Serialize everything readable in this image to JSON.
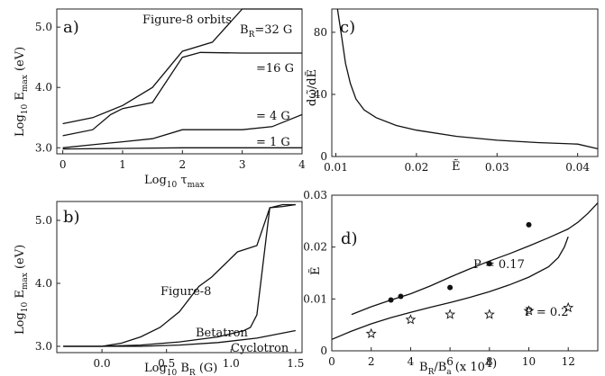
{
  "chart_data": [
    {
      "panel": "a)",
      "type": "line",
      "annotation": "Figure-8 orbits",
      "xlabel": "Log10 τmax",
      "ylabel": "Log10 Emax (eV)",
      "xlim": [
        -0.1,
        4.0
      ],
      "ylim": [
        2.9,
        5.3
      ],
      "xticks": [
        0,
        1,
        2,
        3,
        4
      ],
      "yticks": [
        3.0,
        4.0,
        5.0
      ],
      "series": [
        {
          "name": "BR=32 G",
          "label": "BR = 32 G",
          "x": [
            0,
            0.5,
            1.0,
            1.5,
            2.0,
            2.5,
            3.0,
            3.5,
            4.0
          ],
          "y": [
            3.4,
            3.5,
            3.7,
            4.0,
            4.6,
            4.75,
            5.3,
            5.3,
            5.3
          ]
        },
        {
          "name": "=16 G",
          "label": "= 16 G",
          "x": [
            0,
            0.5,
            0.8,
            1.0,
            1.5,
            2.0,
            2.3,
            3.0,
            3.5,
            4.0
          ],
          "y": [
            3.2,
            3.3,
            3.55,
            3.65,
            3.75,
            4.5,
            4.58,
            4.57,
            4.57,
            4.57
          ]
        },
        {
          "name": "=4 G",
          "label": "= 4 G",
          "x": [
            0,
            0.5,
            1.0,
            1.5,
            2.0,
            2.5,
            3.0,
            3.5,
            4.0
          ],
          "y": [
            3.0,
            3.05,
            3.1,
            3.15,
            3.3,
            3.3,
            3.3,
            3.35,
            3.55
          ]
        },
        {
          "name": "=1 G",
          "label": "= 1 G",
          "x": [
            0,
            1,
            2,
            3,
            4
          ],
          "y": [
            2.98,
            2.99,
            3.0,
            3.0,
            3.0
          ]
        }
      ]
    },
    {
      "panel": "b)",
      "type": "line",
      "xlabel": "Log10 BR (G)",
      "ylabel": "Log10 Emax (eV)",
      "xlim": [
        -0.35,
        1.55
      ],
      "ylim": [
        2.9,
        5.3
      ],
      "xticks": [
        0.0,
        0.5,
        1.0,
        1.5
      ],
      "ytick_values": [
        3.0,
        4.0,
        5.0
      ],
      "yticks": [
        "3.0",
        "4.0",
        "5.0"
      ],
      "xtick_labels": [
        "0.0",
        "0.5",
        "1.0",
        "1.5"
      ],
      "series": [
        {
          "name": "Figure-8",
          "x": [
            -0.3,
            0.0,
            0.15,
            0.3,
            0.45,
            0.6,
            0.75,
            0.85,
            0.95,
            1.05,
            1.2,
            1.3,
            1.4,
            1.5
          ],
          "y": [
            3.0,
            3.0,
            3.05,
            3.15,
            3.3,
            3.55,
            3.95,
            4.1,
            4.3,
            4.5,
            4.6,
            5.2,
            5.25,
            5.25
          ]
        },
        {
          "name": "Betatron",
          "x": [
            -0.3,
            0.0,
            0.3,
            0.6,
            0.9,
            1.1,
            1.15,
            1.2,
            1.3,
            1.4,
            1.5
          ],
          "y": [
            3.0,
            3.0,
            3.02,
            3.07,
            3.15,
            3.25,
            3.3,
            3.5,
            5.2,
            5.22,
            5.25
          ]
        },
        {
          "name": "Cyclotron",
          "x": [
            -0.3,
            0.0,
            0.3,
            0.6,
            0.9,
            1.2,
            1.5
          ],
          "y": [
            3.0,
            3.0,
            3.0,
            3.02,
            3.06,
            3.13,
            3.25
          ]
        }
      ]
    },
    {
      "panel": "c)",
      "type": "line",
      "xlabel": "Ẽ",
      "ylabel": "dω̃/dẼ",
      "xlim": [
        0.0095,
        0.0425
      ],
      "ylim": [
        0,
        95
      ],
      "xticks": [
        0.01,
        0.02,
        0.03,
        0.04
      ],
      "yticks": [
        0,
        40,
        80
      ],
      "xtick_labels": [
        "0.01",
        "0.02",
        "0.03",
        "0.04"
      ],
      "ytick_labels": [
        "0",
        "40",
        "80"
      ],
      "series": [
        {
          "name": "dω/dE",
          "x": [
            0.0102,
            0.0107,
            0.0112,
            0.0118,
            0.0125,
            0.0135,
            0.015,
            0.0175,
            0.02,
            0.025,
            0.03,
            0.035,
            0.04,
            0.0425
          ],
          "y": [
            95,
            78,
            60,
            47,
            37,
            30,
            25,
            20,
            17,
            13,
            10.5,
            9,
            8,
            5
          ]
        }
      ]
    },
    {
      "panel": "d)",
      "type": "line",
      "xlabel": "BR/Ba (x 10^4)",
      "ylabel": "Ẽ",
      "xlim": [
        0,
        13.5
      ],
      "ylim": [
        0,
        0.03
      ],
      "xticks": [
        0,
        2,
        4,
        6,
        8,
        10,
        12
      ],
      "yticks": [
        0,
        0.01,
        0.02,
        0.03
      ],
      "xtick_labels": [
        "0",
        "2",
        "4",
        "6",
        "8",
        "10",
        "12"
      ],
      "ytick_labels": [
        "0",
        "0.01",
        "0.02",
        "0.03"
      ],
      "series": [
        {
          "name": "P=0.17",
          "label": "P = 0.17",
          "x": [
            1,
            2,
            3,
            4,
            5,
            6,
            7,
            8,
            9,
            10,
            11,
            12,
            12.5,
            13,
            13.5
          ],
          "y": [
            0.007,
            0.0085,
            0.0098,
            0.011,
            0.0125,
            0.0142,
            0.0158,
            0.0173,
            0.0187,
            0.0202,
            0.0218,
            0.0235,
            0.0248,
            0.0265,
            0.0285
          ]
        },
        {
          "name": "P=0.2",
          "label": "P = 0.2",
          "x": [
            0,
            1,
            2,
            3,
            4,
            5,
            6,
            7,
            8,
            9,
            10,
            11,
            11.5,
            11.8,
            12
          ],
          "y": [
            0.0022,
            0.0038,
            0.0052,
            0.0064,
            0.0074,
            0.0084,
            0.0093,
            0.0103,
            0.0114,
            0.0127,
            0.0142,
            0.0162,
            0.018,
            0.02,
            0.022
          ]
        },
        {
          "name": "dots",
          "type": "scatter",
          "marker": "dot",
          "x": [
            3.0,
            3.5,
            6.0,
            8.0,
            10.0
          ],
          "y": [
            0.0098,
            0.0105,
            0.0122,
            0.0168,
            0.0243
          ]
        },
        {
          "name": "stars",
          "type": "scatter",
          "marker": "star",
          "x": [
            2.0,
            4.0,
            6.0,
            8.0,
            10.0,
            12.0
          ],
          "y": [
            0.0033,
            0.006,
            0.007,
            0.007,
            0.0077,
            0.0083
          ]
        }
      ]
    }
  ]
}
